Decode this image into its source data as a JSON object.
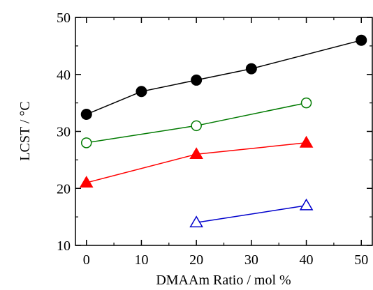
{
  "chart_data": {
    "type": "scatter",
    "xlabel": "DMAAm Ratio / mol %",
    "ylabel": "LCST / °C",
    "xlim": [
      -2,
      52
    ],
    "ylim": [
      10,
      50
    ],
    "xticks": [
      "0",
      "10",
      "20",
      "30",
      "40",
      "50"
    ],
    "yticks": [
      "10",
      "20",
      "30",
      "40",
      "50"
    ],
    "grid": false,
    "series": [
      {
        "marker": "filled-circle",
        "color": "#000000",
        "x": [
          0,
          10,
          20,
          30,
          50
        ],
        "y": [
          33,
          37,
          39,
          41,
          46
        ]
      },
      {
        "marker": "open-circle",
        "color": "#007a00",
        "x": [
          0,
          20,
          40
        ],
        "y": [
          28,
          31,
          35
        ]
      },
      {
        "marker": "filled-triangle",
        "color": "#ff0000",
        "x": [
          0,
          20,
          40
        ],
        "y": [
          21,
          26,
          28
        ]
      },
      {
        "marker": "open-triangle",
        "color": "#0000cc",
        "x": [
          20,
          40
        ],
        "y": [
          14,
          17
        ]
      }
    ]
  }
}
